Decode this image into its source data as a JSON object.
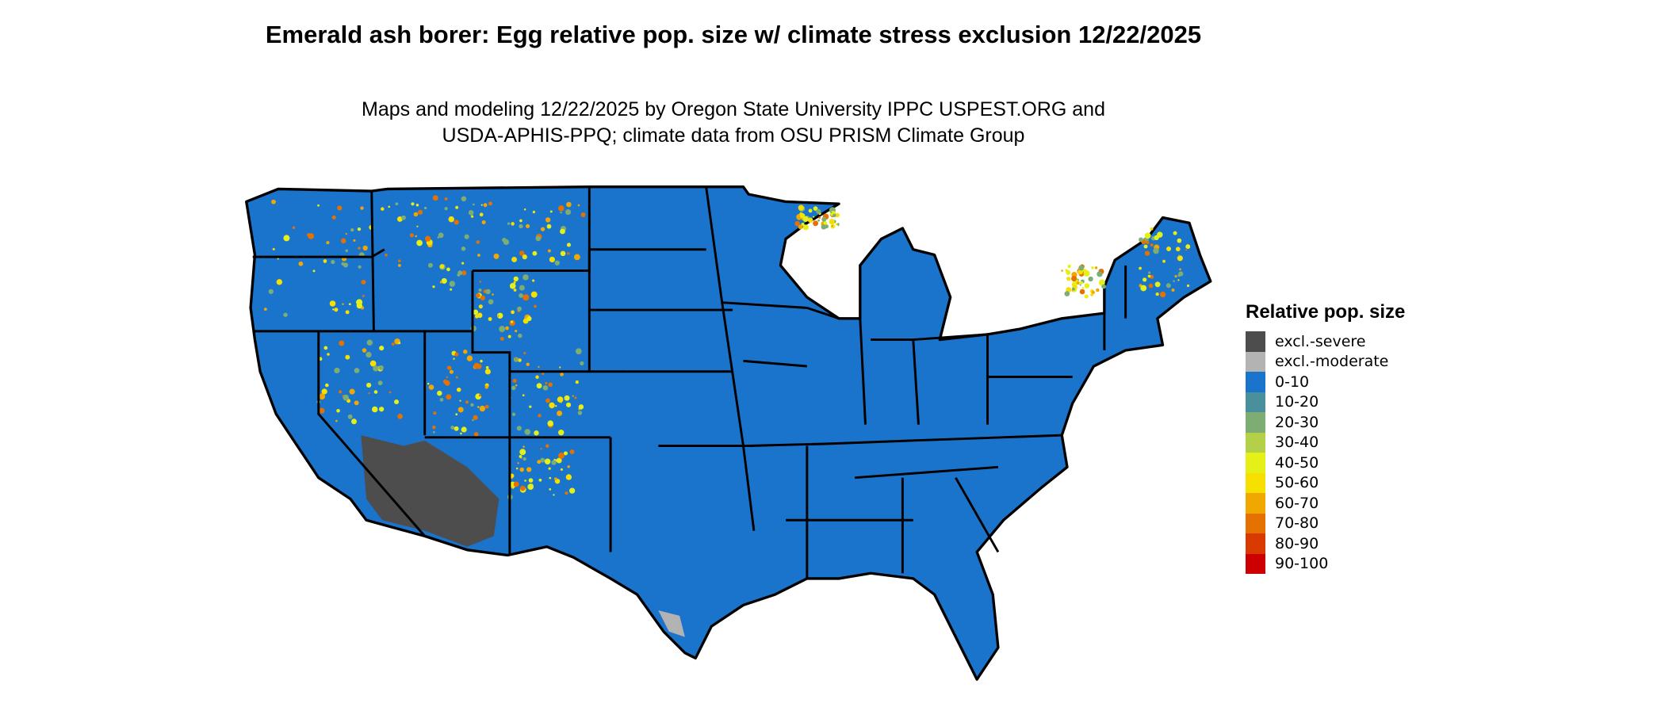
{
  "title": "Emerald ash borer: Egg relative pop. size w/ climate stress exclusion 12/22/2025",
  "subtitle_line1": "Maps and modeling 12/22/2025 by Oregon State University IPPC USPEST.ORG and",
  "subtitle_line2": "USDA-APHIS-PPQ; climate data from OSU PRISM Climate Group",
  "legend": {
    "title": "Relative pop. size",
    "items": [
      {
        "label": "excl.-severe",
        "color": "#4d4d4d"
      },
      {
        "label": "excl.-moderate",
        "color": "#b3b3b3"
      },
      {
        "label": "0-10",
        "color": "#1a74cc"
      },
      {
        "label": "10-20",
        "color": "#4a909c"
      },
      {
        "label": "20-30",
        "color": "#7dad72"
      },
      {
        "label": "30-40",
        "color": "#b3d048"
      },
      {
        "label": "40-50",
        "color": "#e5f018"
      },
      {
        "label": "50-60",
        "color": "#f7df00"
      },
      {
        "label": "60-70",
        "color": "#f0a800"
      },
      {
        "label": "70-80",
        "color": "#e57200"
      },
      {
        "label": "80-90",
        "color": "#d93a00"
      },
      {
        "label": "90-100",
        "color": "#cc0000"
      }
    ]
  },
  "map": {
    "region": "Contiguous United States",
    "base_color": "#1a74cc",
    "border_color": "#000000"
  }
}
